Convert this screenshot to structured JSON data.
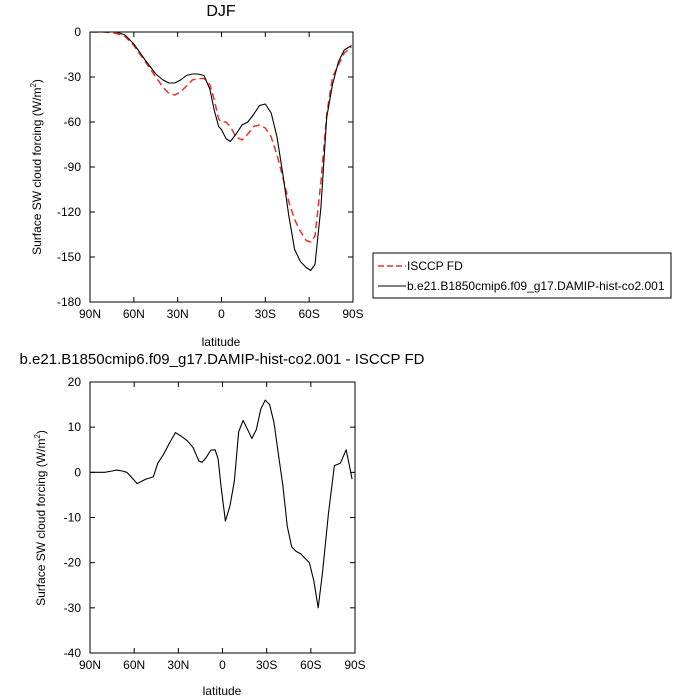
{
  "chart_data": [
    {
      "type": "line",
      "title": "DJF",
      "xlabel": "latitude",
      "ylabel": "Surface SW cloud forcing (W/m",
      "ylabel_sup": "2",
      "ylabel_close": ")",
      "xlim": [
        90,
        -90
      ],
      "ylim": [
        -180,
        0
      ],
      "xticks": [
        90,
        60,
        30,
        0,
        -30,
        -60,
        -90
      ],
      "xtick_labels": [
        "90N",
        "60N",
        "30N",
        "0",
        "30S",
        "60S",
        "90S"
      ],
      "yticks": [
        0,
        -30,
        -60,
        -90,
        -120,
        -150,
        -180
      ],
      "ytick_labels": [
        "0",
        "-30",
        "-60",
        "-90",
        "-120",
        "-150",
        "-180"
      ],
      "grid": false,
      "legend_position": "right",
      "series": [
        {
          "name": "ISCCP FD",
          "color": "#e8332a",
          "dash": "dashed",
          "x": [
            89,
            80,
            72,
            66,
            60,
            52,
            45,
            40,
            36,
            32,
            28,
            24,
            20,
            16,
            12,
            8,
            5,
            2,
            0,
            -3,
            -6,
            -10,
            -14,
            -18,
            -22,
            -26,
            -30,
            -34,
            -38,
            -42,
            -46,
            -50,
            -54,
            -58,
            -61,
            -64,
            -68,
            -72,
            -76,
            -80,
            -84,
            -89
          ],
          "y": [
            0,
            0,
            -1,
            -3,
            -9,
            -20,
            -30,
            -37,
            -41,
            -42,
            -40,
            -36,
            -32,
            -31,
            -31,
            -35,
            -45,
            -58,
            -60,
            -60,
            -63,
            -70,
            -72,
            -68,
            -63,
            -62,
            -64,
            -70,
            -82,
            -97,
            -113,
            -125,
            -133,
            -139,
            -140,
            -136,
            -100,
            -55,
            -30,
            -22,
            -14,
            -10
          ]
        },
        {
          "name": "b.e21.B1850cmip6.f09_g17.DAMIP-hist-co2.001",
          "color": "#000000",
          "dash": "solid",
          "x": [
            89,
            80,
            72,
            66,
            60,
            52,
            45,
            40,
            36,
            32,
            28,
            24,
            20,
            16,
            12,
            8,
            5,
            2,
            0,
            -3,
            -6,
            -10,
            -14,
            -18,
            -22,
            -26,
            -30,
            -34,
            -38,
            -42,
            -46,
            -50,
            -54,
            -58,
            -61,
            -64,
            -68,
            -72,
            -76,
            -80,
            -84,
            -89
          ],
          "y": [
            0,
            0,
            0,
            -2,
            -8,
            -19,
            -28,
            -32,
            -34,
            -34,
            -32,
            -29,
            -28,
            -28,
            -29,
            -38,
            -52,
            -63,
            -65,
            -71,
            -73,
            -68,
            -62,
            -60,
            -55,
            -49,
            -48,
            -54,
            -70,
            -95,
            -122,
            -145,
            -153,
            -157,
            -159,
            -155,
            -117,
            -57,
            -35,
            -20,
            -12,
            -9
          ]
        }
      ]
    },
    {
      "type": "line",
      "title": "b.e21.B1850cmip6.f09_g17.DAMIP-hist-co2.001 - ISCCP FD",
      "xlabel": "latitude",
      "ylabel": "Surface SW cloud forcing (W/m",
      "ylabel_sup": "2",
      "ylabel_close": ")",
      "xlim": [
        90,
        -90
      ],
      "ylim": [
        -40,
        20
      ],
      "xticks": [
        90,
        60,
        30,
        0,
        -30,
        -60,
        -90
      ],
      "xtick_labels": [
        "90N",
        "60N",
        "30N",
        "0",
        "30S",
        "60S",
        "90S"
      ],
      "yticks": [
        20,
        10,
        0,
        -10,
        -20,
        -30,
        -40
      ],
      "ytick_labels": [
        "20",
        "10",
        "0",
        "-10",
        "-20",
        "-30",
        "-40"
      ],
      "grid": false,
      "series": [
        {
          "color": "#000000",
          "dash": "solid",
          "x": [
            89,
            80,
            75,
            72,
            68,
            65,
            62,
            58,
            52,
            47,
            44,
            40,
            36,
            32,
            28,
            24,
            20,
            18,
            16,
            14,
            11,
            8,
            5,
            3,
            1,
            -2,
            -5,
            -8,
            -11,
            -14,
            -17,
            -20,
            -23,
            -26,
            -29,
            -32,
            -35,
            -38,
            -41,
            -44,
            -47,
            -50,
            -53,
            -56,
            -59,
            -62,
            -65,
            -68,
            -72,
            -76,
            -80,
            -84,
            -88
          ],
          "y": [
            0,
            0,
            0.3,
            0.5,
            0.3,
            0,
            -1,
            -2.5,
            -1.5,
            -1,
            2,
            4,
            6.5,
            8.8,
            8,
            7,
            5.5,
            4,
            2.5,
            2.2,
            3.3,
            4.9,
            5,
            3,
            -3,
            -10.8,
            -7.5,
            -2,
            9,
            11.5,
            9.5,
            7.5,
            9.5,
            14,
            16,
            15,
            11,
            4,
            -3,
            -12,
            -16.5,
            -17.5,
            -18,
            -19,
            -20,
            -24,
            -30,
            -22,
            -9,
            1.5,
            2,
            5,
            -1.5
          ]
        }
      ]
    }
  ]
}
